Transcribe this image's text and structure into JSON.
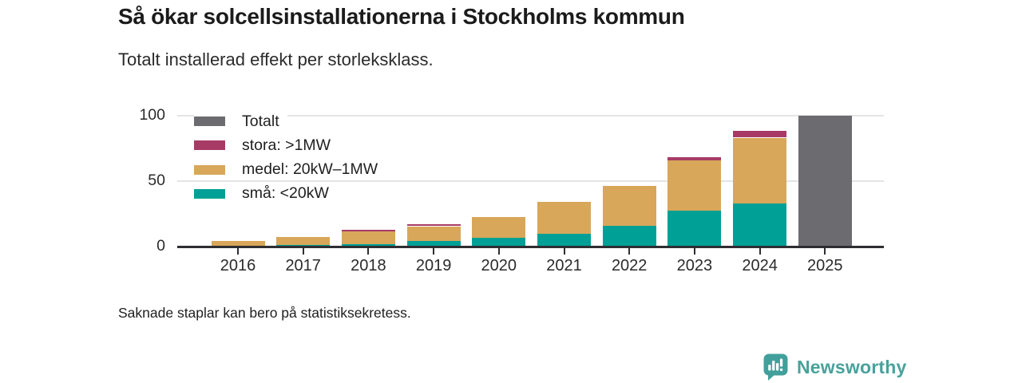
{
  "title": "Så ökar solcellsinstallationerna i Stockholms kommun",
  "subtitle": "Totalt installerad effekt per storleksklass.",
  "footer_note": "Saknade staplar kan bero på statistiksekretess.",
  "branding": {
    "name": "Newsworthy",
    "icon": "newsworthy-chart-bubble-icon",
    "color": "#47a29b",
    "icon_color": "#41a09b"
  },
  "colors": {
    "totalt": "#6c6b70",
    "stora": "#a73b66",
    "medel": "#d8a75a",
    "sma": "#00a096",
    "gridline": "#e4e4e4",
    "axis": "#2e2e32",
    "text": "#2b2b2b"
  },
  "legend": [
    {
      "label": "Totalt",
      "key": "totalt"
    },
    {
      "label": "stora: >1MW",
      "key": "stora"
    },
    {
      "label": "medel: 20kW–1MW",
      "key": "medel"
    },
    {
      "label": "små: <20kW",
      "key": "sma"
    }
  ],
  "chart_data": {
    "type": "bar",
    "stacked": true,
    "title": "Så ökar solcellsinstallationerna i Stockholms kommun",
    "subtitle": "Totalt installerad effekt per storleksklass.",
    "xlabel": "",
    "ylabel": "",
    "ylim": [
      0,
      100
    ],
    "yticks": [
      0,
      50,
      100
    ],
    "grid": "horizontal",
    "legend_position": "top-left-inside",
    "categories": [
      "2016",
      "2017",
      "2018",
      "2019",
      "2020",
      "2021",
      "2022",
      "2023",
      "2024",
      "2025"
    ],
    "series": [
      {
        "name": "små: <20kW",
        "key": "sma",
        "values": [
          0.5,
          1.5,
          2.0,
          4.0,
          6.5,
          9.5,
          16.0,
          27.5,
          33.0,
          0
        ]
      },
      {
        "name": "medel: 20kW–1MW",
        "key": "medel",
        "values": [
          4.0,
          6.0,
          9.5,
          11.5,
          16.0,
          24.5,
          30.0,
          38.0,
          50.0,
          0
        ]
      },
      {
        "name": "stora: >1MW",
        "key": "stora",
        "values": [
          0,
          0,
          1.5,
          1.7,
          0,
          0,
          0,
          2.7,
          5.0,
          0
        ]
      },
      {
        "name": "Totalt",
        "key": "totalt",
        "values": [
          0,
          0,
          0,
          0,
          0,
          0,
          0,
          0,
          0,
          99.5
        ]
      }
    ]
  }
}
